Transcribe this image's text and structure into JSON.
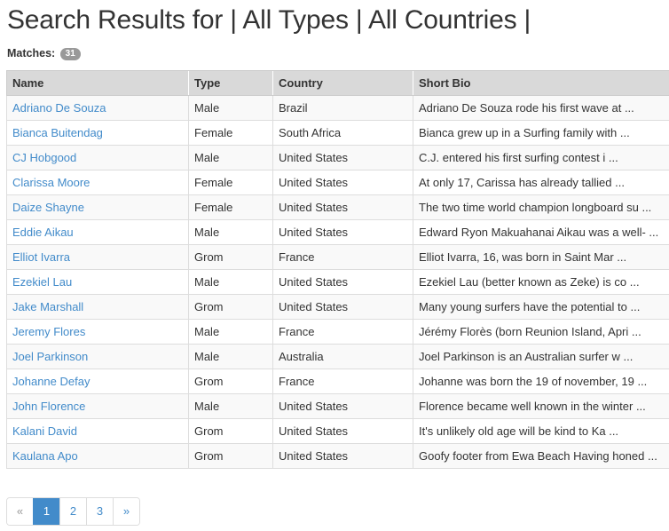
{
  "page": {
    "title": "Search Results for | All Types | All Countries |",
    "matches_label": "Matches:",
    "matches_count": "31"
  },
  "table": {
    "headers": {
      "name": "Name",
      "type": "Type",
      "country": "Country",
      "bio": "Short Bio"
    },
    "rows": [
      {
        "name": "Adriano De Souza",
        "type": "Male",
        "country": "Brazil",
        "bio": "Adriano De Souza rode his first wave at ..."
      },
      {
        "name": "Bianca Buitendag",
        "type": "Female",
        "country": "South Africa",
        "bio": "Bianca grew up in a Surfing family with ..."
      },
      {
        "name": "CJ Hobgood",
        "type": "Male",
        "country": "United States",
        "bio": "C.J. entered his first surfing contest i ..."
      },
      {
        "name": "Clarissa Moore",
        "type": "Female",
        "country": "United States",
        "bio": "At only 17, Carissa has already tallied ..."
      },
      {
        "name": "Daize Shayne",
        "type": "Female",
        "country": "United States",
        "bio": "The two time world champion longboard su ..."
      },
      {
        "name": "Eddie Aikau",
        "type": "Male",
        "country": "United States",
        "bio": "Edward Ryon Makuahanai Aikau was a well- ..."
      },
      {
        "name": "Elliot Ivarra",
        "type": "Grom",
        "country": "France",
        "bio": "Elliot Ivarra, 16, was born in Saint Mar ..."
      },
      {
        "name": "Ezekiel Lau",
        "type": "Male",
        "country": "United States",
        "bio": "Ezekiel Lau (better known as Zeke) is co ..."
      },
      {
        "name": "Jake Marshall",
        "type": "Grom",
        "country": "United States",
        "bio": "Many young surfers have the potential to ..."
      },
      {
        "name": "Jeremy Flores",
        "type": "Male",
        "country": "France",
        "bio": "Jérémy Florès (born Reunion Island, Apri ..."
      },
      {
        "name": "Joel Parkinson",
        "type": "Male",
        "country": "Australia",
        "bio": "Joel Parkinson is an Australian surfer w ..."
      },
      {
        "name": "Johanne Defay",
        "type": "Grom",
        "country": "France",
        "bio": "Johanne was born the 19 of november, 19 ..."
      },
      {
        "name": "John Florence",
        "type": "Male",
        "country": "United States",
        "bio": "Florence became well known in the winter ..."
      },
      {
        "name": "Kalani David",
        "type": "Grom",
        "country": "United States",
        "bio": "It's unlikely old age will be kind to Ka ..."
      },
      {
        "name": "Kaulana Apo",
        "type": "Grom",
        "country": "United States",
        "bio": "Goofy footer from Ewa Beach Having honed ..."
      }
    ]
  },
  "pagination": {
    "prev": "«",
    "pages": [
      "1",
      "2",
      "3"
    ],
    "next": "»",
    "active_page": "1"
  }
}
